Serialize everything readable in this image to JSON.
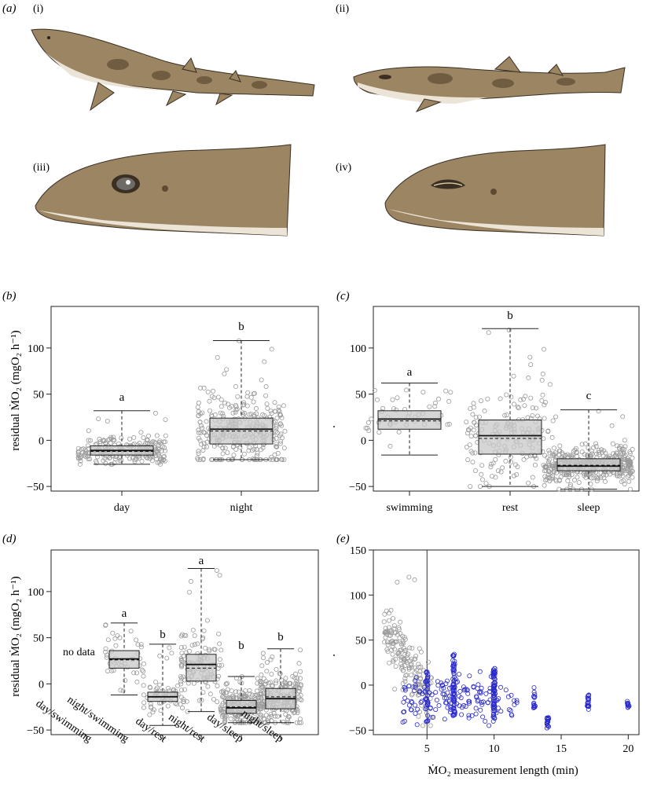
{
  "figure": {
    "panel_labels": {
      "a": "(a)",
      "b": "(b)",
      "c": "(c)",
      "d": "(d)",
      "e": "(e)"
    },
    "subpanel_labels": [
      "(i)",
      "(ii)",
      "(iii)",
      "(iv)"
    ],
    "colors": {
      "box_fill": "#c8c8c8",
      "point_grey": "#9a9a9a",
      "point_blue": "#2a2acc",
      "shark_body": "#9b8562",
      "shark_belly": "#ece4d6",
      "shark_spot": "#5e4a32"
    },
    "illustrations": [
      "shark-side-swimming",
      "shark-side-resting",
      "shark-head-eye-open",
      "shark-head-eye-closed"
    ]
  },
  "chart_data": [
    {
      "panel": "(b)",
      "type": "box",
      "ylabel": "residual ṀO₂ (mgO₂ h⁻¹)",
      "ylim": [
        -55,
        145
      ],
      "yticks": [
        -50,
        0,
        50,
        100
      ],
      "categories": [
        "day",
        "night"
      ],
      "boxes": [
        {
          "q1": -16,
          "median": -11,
          "mean": -12,
          "q3": -6,
          "whisker_low": -26,
          "whisker_high": 32,
          "letter": "a",
          "n_points": 230
        },
        {
          "q1": -4,
          "median": 12,
          "mean": 10,
          "q3": 24,
          "whisker_low": -21,
          "whisker_high": 108,
          "letter": "b",
          "n_points": 300
        }
      ]
    },
    {
      "panel": "(c)",
      "type": "box",
      "ylim": [
        -55,
        145
      ],
      "yticks": [
        -50,
        0,
        50,
        100
      ],
      "categories": [
        "swimming",
        "rest",
        "sleep"
      ],
      "boxes": [
        {
          "q1": 12,
          "median": 23,
          "mean": 21,
          "q3": 32,
          "whisker_low": -16,
          "whisker_high": 62,
          "letter": "a",
          "n_points": 45
        },
        {
          "q1": -15,
          "median": 5,
          "mean": 2,
          "q3": 22,
          "whisker_low": -50,
          "whisker_high": 121,
          "letter": "b",
          "n_points": 180
        },
        {
          "q1": -33,
          "median": -28,
          "mean": -27,
          "q3": -20,
          "whisker_low": -53,
          "whisker_high": 33,
          "letter": "c",
          "n_points": 400
        }
      ]
    },
    {
      "panel": "(d)",
      "type": "box",
      "ylabel": "residual ṀO₂ (mgO₂ h⁻¹)",
      "ylim": [
        -55,
        145
      ],
      "yticks": [
        -50,
        0,
        50,
        100
      ],
      "categories": [
        "day/swimming",
        "night/swimming",
        "day/rest",
        "night/rest",
        "day/sleep",
        "night/sleep"
      ],
      "no_data_text": "no data",
      "boxes": [
        null,
        {
          "q1": 17,
          "median": 27,
          "mean": 26,
          "q3": 36,
          "whisker_low": -12,
          "whisker_high": 66,
          "letter": "a",
          "n_points": 45
        },
        {
          "q1": -19,
          "median": -14,
          "mean": -14,
          "q3": -9,
          "whisker_low": -45,
          "whisker_high": 43,
          "letter": "b",
          "n_points": 60
        },
        {
          "q1": 3,
          "median": 21,
          "mean": 17,
          "q3": 32,
          "whisker_low": -30,
          "whisker_high": 125,
          "letter": "a",
          "n_points": 120
        },
        {
          "q1": -32,
          "median": -26,
          "mean": -25,
          "q3": -18,
          "whisker_low": -42,
          "whisker_high": 8,
          "letter": "b",
          "n_points": 200
        },
        {
          "q1": -27,
          "median": -16,
          "mean": -14,
          "q3": -5,
          "whisker_low": -42,
          "whisker_high": 38,
          "letter": "b",
          "n_points": 200
        }
      ]
    },
    {
      "panel": "(e)",
      "type": "scatter",
      "xlabel": "ṀO₂ measurement length (min)",
      "xlim": [
        1,
        20.8
      ],
      "ylim": [
        -55,
        150
      ],
      "xticks": [
        5,
        10,
        15,
        20
      ],
      "yticks": [
        -50,
        0,
        50,
        100,
        150
      ],
      "vline_x": 5,
      "series": [
        {
          "color": "grey",
          "x_range": [
            1.8,
            5.4
          ],
          "n_points": 170
        },
        {
          "color": "blue",
          "x_range": [
            3,
            20
          ],
          "n_points": 380
        }
      ]
    }
  ]
}
